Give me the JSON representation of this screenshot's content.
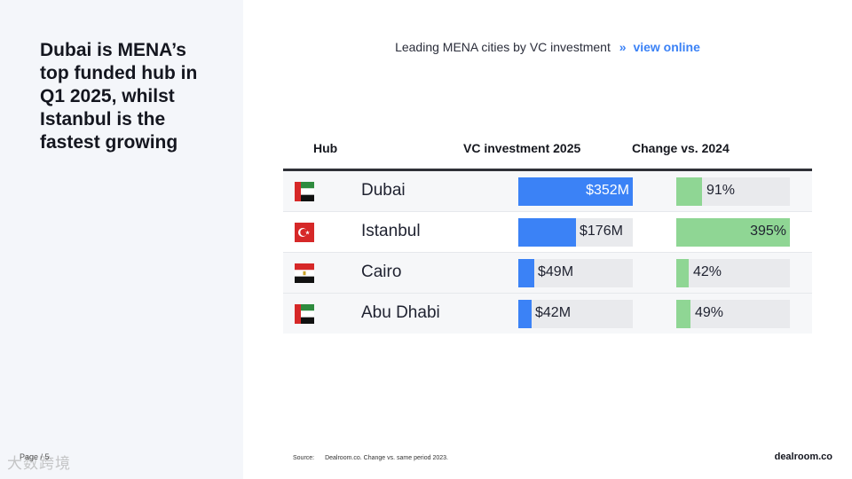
{
  "slide": {
    "headline": "Dubai is MENA’s top funded hub in Q1 2025, whilst Istanbul is the fastest growing",
    "page": "Page / 5",
    "watermark": "大数跨境"
  },
  "chart_header": {
    "title": "Leading MENA cities by VC investment",
    "separator": "»",
    "link": "view online"
  },
  "colors": {
    "vc_bar": "#3b82f6",
    "change_bar": "#8fd694",
    "track": "#e9eaed"
  },
  "chart_data": {
    "type": "table",
    "columns": [
      "Hub",
      "VC investment 2025",
      "Change vs. 2024"
    ],
    "rows": [
      {
        "hub": "Dubai",
        "flag": "uae-flag-icon",
        "vc_label": "$352M",
        "vc_value": 352,
        "change_label": "91%",
        "change_value": 91
      },
      {
        "hub": "Istanbul",
        "flag": "turkey-flag-icon",
        "vc_label": "$176M",
        "vc_value": 176,
        "change_label": "395%",
        "change_value": 395
      },
      {
        "hub": "Cairo",
        "flag": "egypt-flag-icon",
        "vc_label": "$49M",
        "vc_value": 49,
        "change_label": "42%",
        "change_value": 42
      },
      {
        "hub": "Abu Dhabi",
        "flag": "uae-flag-icon",
        "vc_label": "$42M",
        "vc_value": 42,
        "change_label": "49%",
        "change_value": 49
      }
    ]
  },
  "footer": {
    "source_key": "Source:",
    "source_text": "Dealroom.co. Change vs. same period 2023.",
    "brand": "dealroom.co"
  }
}
